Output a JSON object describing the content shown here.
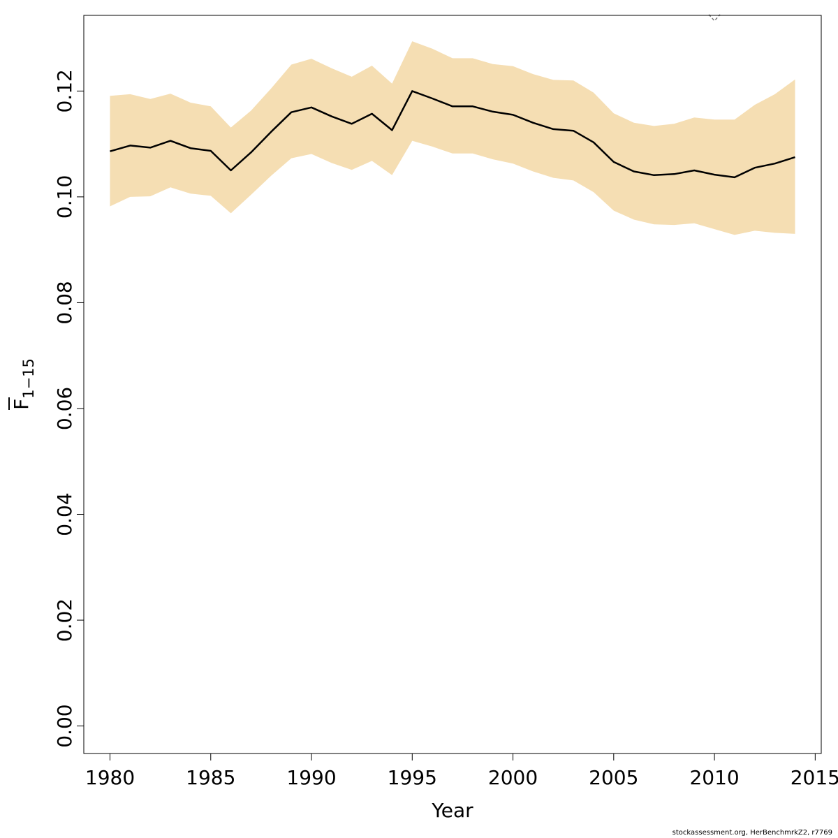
{
  "chart_data": {
    "type": "area",
    "xlabel": "Year",
    "ylabel_main": "F",
    "ylabel_sub": "1−15",
    "xlim": [
      1978.7,
      2015.3
    ],
    "ylim": [
      -0.0052,
      0.1343
    ],
    "x_ticks": [
      1980,
      1985,
      1990,
      1995,
      2000,
      2005,
      2010,
      2015
    ],
    "y_ticks": [
      0.0,
      0.02,
      0.04,
      0.06,
      0.08,
      0.1,
      0.12
    ],
    "y_tick_labels": [
      "0.00",
      "0.02",
      "0.04",
      "0.06",
      "0.08",
      "0.10",
      "0.12"
    ],
    "grid": false,
    "colors": {
      "band": "#F5DEB3",
      "line": "#000000",
      "marker": "#777777"
    },
    "x": [
      1980,
      1981,
      1982,
      1983,
      1984,
      1985,
      1986,
      1987,
      1988,
      1989,
      1990,
      1991,
      1992,
      1993,
      1994,
      1995,
      1996,
      1997,
      1998,
      1999,
      2000,
      2001,
      2002,
      2003,
      2004,
      2005,
      2006,
      2007,
      2008,
      2009,
      2010,
      2011,
      2012,
      2013,
      2014
    ],
    "estimate": [
      0.1086,
      0.1097,
      0.1093,
      0.1106,
      0.1092,
      0.1087,
      0.105,
      0.1084,
      0.1123,
      0.116,
      0.1169,
      0.1152,
      0.1138,
      0.1157,
      0.1126,
      0.12,
      0.1186,
      0.1171,
      0.1171,
      0.1161,
      0.1155,
      0.114,
      0.1128,
      0.1125,
      0.1103,
      0.1066,
      0.1048,
      0.1041,
      0.1043,
      0.105,
      0.1042,
      0.1037,
      0.1055,
      0.1063,
      0.1075
    ],
    "upper": [
      0.1191,
      0.1194,
      0.1185,
      0.1195,
      0.1178,
      0.1171,
      0.1131,
      0.1163,
      0.1205,
      0.125,
      0.1261,
      0.1243,
      0.1227,
      0.1248,
      0.1214,
      0.1294,
      0.128,
      0.1262,
      0.1262,
      0.1251,
      0.1247,
      0.1232,
      0.1221,
      0.122,
      0.1197,
      0.1158,
      0.114,
      0.1134,
      0.1138,
      0.115,
      0.1146,
      0.1146,
      0.1174,
      0.1194,
      0.1222
    ],
    "lower": [
      0.0982,
      0.1,
      0.1001,
      0.1018,
      0.1006,
      0.1002,
      0.0969,
      0.1004,
      0.104,
      0.1073,
      0.1081,
      0.1064,
      0.1051,
      0.1068,
      0.1041,
      0.1106,
      0.1095,
      0.1082,
      0.1082,
      0.1071,
      0.1063,
      0.1048,
      0.1036,
      0.1031,
      0.1009,
      0.0974,
      0.0957,
      0.0948,
      0.0947,
      0.095,
      0.0939,
      0.0928,
      0.0936,
      0.0932,
      0.093
    ],
    "marker": {
      "x": 2010,
      "y": 0.1334
    }
  },
  "credit": "stockassessment.org, HerBenchmrkZ2, r7769"
}
